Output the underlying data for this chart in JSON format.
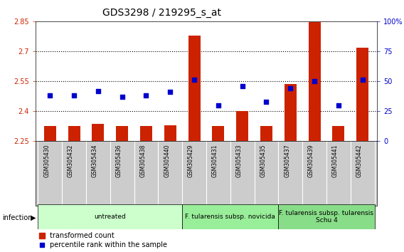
{
  "title": "GDS3298 / 219295_s_at",
  "samples": [
    "GSM305430",
    "GSM305432",
    "GSM305434",
    "GSM305436",
    "GSM305438",
    "GSM305440",
    "GSM305429",
    "GSM305431",
    "GSM305433",
    "GSM305435",
    "GSM305437",
    "GSM305439",
    "GSM305441",
    "GSM305442"
  ],
  "bar_values": [
    2.326,
    2.326,
    2.335,
    2.325,
    2.325,
    2.33,
    2.78,
    2.327,
    2.4,
    2.327,
    2.535,
    2.845,
    2.327,
    2.72
  ],
  "dot_values": [
    38,
    38,
    42,
    37,
    38,
    41,
    51,
    30,
    46,
    33,
    44,
    50,
    30,
    51
  ],
  "ylim_left": [
    2.25,
    2.85
  ],
  "ylim_right": [
    0,
    100
  ],
  "yticks_left": [
    2.25,
    2.4,
    2.55,
    2.7,
    2.85
  ],
  "yticks_right": [
    0,
    25,
    50,
    75,
    100
  ],
  "ytick_labels_left": [
    "2.25",
    "2.4",
    "2.55",
    "2.7",
    "2.85"
  ],
  "ytick_labels_right": [
    "0",
    "25",
    "50",
    "75",
    "100%"
  ],
  "hlines": [
    2.4,
    2.55,
    2.7
  ],
  "bar_color": "#cc2200",
  "dot_color": "#0000cc",
  "bar_width": 0.5,
  "groups": [
    {
      "label": "untreated",
      "start": 0,
      "end": 5,
      "color": "#ccffcc"
    },
    {
      "label": "F. tularensis subsp. novicida",
      "start": 6,
      "end": 9,
      "color": "#99ee99"
    },
    {
      "label": "F. tularensis subsp. tularensis\nSchu 4",
      "start": 10,
      "end": 13,
      "color": "#88dd88"
    }
  ],
  "infection_label": "infection",
  "legend_bar_label": "transformed count",
  "legend_dot_label": "percentile rank within the sample",
  "plot_bg": "#ffffff",
  "tick_area_bg": "#cccccc",
  "title_fontsize": 10,
  "tick_fontsize": 7,
  "label_fontsize": 7,
  "group_fontsize": 6.5,
  "sample_fontsize": 5.5
}
